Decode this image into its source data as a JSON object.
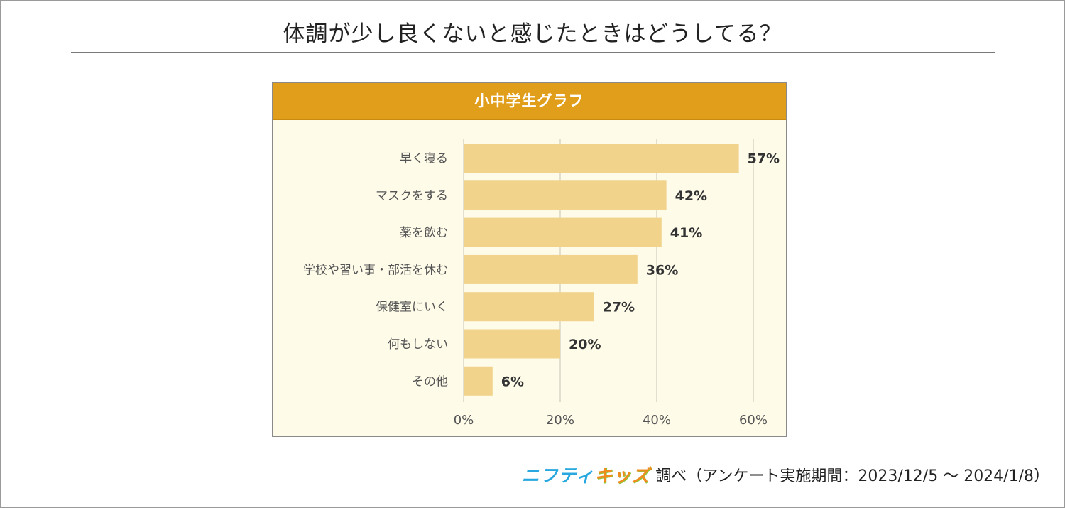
{
  "title": "体調が少し良くないと感じたときはどうしてる？",
  "chart_header": "小中学生グラフ",
  "source": {
    "logo_part1": "ニフティ",
    "logo_part2": "キッズ",
    "text": "調べ（アンケート実施期間：2023/12/5 ～ 2024/1/8）"
  },
  "colors": {
    "header": "#e19e1b",
    "panel_bg": "#fefbe9",
    "bar": "#f1d38b",
    "grid": "#d9d6c6",
    "label": "#555555",
    "value_label": "#333333"
  },
  "chart_data": {
    "type": "bar",
    "orientation": "horizontal",
    "title": "小中学生グラフ",
    "categories": [
      "早く寝る",
      "マスクをする",
      "薬を飲む",
      "学校や習い事・部活を休む",
      "保健室にいく",
      "何もしない",
      "その他"
    ],
    "values": [
      57,
      42,
      41,
      36,
      27,
      20,
      6
    ],
    "value_labels": [
      "57%",
      "42%",
      "41%",
      "36%",
      "27%",
      "20%",
      "6%"
    ],
    "x_ticks": [
      0,
      20,
      40,
      60
    ],
    "x_tick_labels": [
      "0%",
      "20%",
      "40%",
      "60%"
    ],
    "xlim": [
      0,
      60
    ],
    "grid": true,
    "xlabel": "",
    "ylabel": ""
  }
}
